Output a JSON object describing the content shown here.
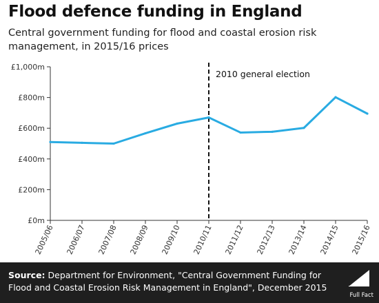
{
  "header": {
    "title": "Flood defence funding in England",
    "subtitle": "Central government funding for flood and coastal erosion risk management, in 2015/16 prices"
  },
  "footer": {
    "source_label": "Source:",
    "source_text": "Department for Environment, \"Central Government Funding for Flood and Coastal Erosion Risk Management in England\", December 2015",
    "brand": "Full Fact"
  },
  "colors": {
    "line": "#29abe2",
    "axis": "#333333",
    "grid": "#e6e6e6",
    "footer_bg": "#1f1f1f"
  },
  "chart_data": {
    "type": "line",
    "title": "Flood defence funding in England",
    "categories": [
      "2005/06",
      "2006/07",
      "2007/08",
      "2008/09",
      "2009/10",
      "2010/11",
      "2011/12",
      "2012/13",
      "2013/14",
      "2014/15",
      "2015/16"
    ],
    "series": [
      {
        "values": [
          510,
          505,
          500,
          567,
          630,
          670,
          572,
          577,
          602,
          802,
          695
        ]
      }
    ],
    "xlabel": "",
    "ylabel": "",
    "ylim": [
      0,
      1000
    ],
    "y_ticks": [
      0,
      200,
      400,
      600,
      800,
      1000
    ],
    "y_tick_labels": [
      "£0m",
      "£200m",
      "£400m",
      "£600m",
      "£800m",
      "£1,000m"
    ],
    "grid": false,
    "annotations": [
      {
        "category": "2010/11",
        "text": "2010 general election",
        "style": "dashed-vertical-line"
      }
    ]
  }
}
